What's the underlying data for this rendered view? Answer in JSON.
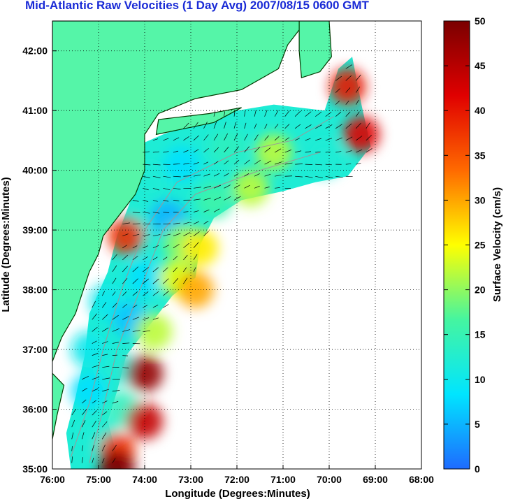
{
  "chart_data": {
    "type": "heatmap",
    "title": "Mid-Atlantic Raw Velocities (1 Day Avg) 2007/08/15 0600 GMT",
    "xlabel": "Longitude (Degrees:Minutes)",
    "ylabel": "Latitude (Degrees:Minutes)",
    "x_ticks": [
      "76:00",
      "75:00",
      "74:00",
      "73:00",
      "72:00",
      "71:00",
      "70:00",
      "69:00",
      "68:00"
    ],
    "y_ticks": [
      "42:00",
      "41:00",
      "40:00",
      "39:00",
      "38:00",
      "37:00",
      "36:00",
      "35:00"
    ],
    "xlim": [
      -76.0,
      -68.0
    ],
    "ylim": [
      35.0,
      42.5
    ],
    "grid": true,
    "colorbar": {
      "label": "Surface Velocity (cm/s)",
      "ticks": [
        "50",
        "45",
        "40",
        "35",
        "30",
        "25",
        "20",
        "15",
        "10",
        "5",
        "0"
      ],
      "range": [
        0,
        50
      ],
      "colors": [
        "#1e6bff",
        "#00e5ff",
        "#45f5a0",
        "#ffff00",
        "#ff6a00",
        "#e00000",
        "#7a0000"
      ]
    },
    "colors": {
      "land": "#55f5a8",
      "coastline": "#003a00",
      "bathymetry": "#9a9a9a",
      "vectors": "#000000"
    },
    "velocity_field": [
      {
        "lon": -69.6,
        "lat": 41.4,
        "speed": 40
      },
      {
        "lon": -69.3,
        "lat": 40.6,
        "speed": 42
      },
      {
        "lon": -70.1,
        "lat": 40.2,
        "speed": 12
      },
      {
        "lon": -71.2,
        "lat": 40.3,
        "speed": 22
      },
      {
        "lon": -72.2,
        "lat": 40.4,
        "speed": 14
      },
      {
        "lon": -73.2,
        "lat": 40.1,
        "speed": 8
      },
      {
        "lon": -73.9,
        "lat": 39.8,
        "speed": 12
      },
      {
        "lon": -71.7,
        "lat": 39.7,
        "speed": 22
      },
      {
        "lon": -72.5,
        "lat": 39.5,
        "speed": 16
      },
      {
        "lon": -73.5,
        "lat": 39.2,
        "speed": 5
      },
      {
        "lon": -74.2,
        "lat": 39.0,
        "speed": 12
      },
      {
        "lon": -74.4,
        "lat": 38.9,
        "speed": 38
      },
      {
        "lon": -73.2,
        "lat": 38.8,
        "speed": 20
      },
      {
        "lon": -72.8,
        "lat": 38.7,
        "speed": 26
      },
      {
        "lon": -74.0,
        "lat": 38.2,
        "speed": 8
      },
      {
        "lon": -73.3,
        "lat": 38.2,
        "speed": 24
      },
      {
        "lon": -72.9,
        "lat": 38.0,
        "speed": 30
      },
      {
        "lon": -74.8,
        "lat": 37.8,
        "speed": 10
      },
      {
        "lon": -74.3,
        "lat": 37.5,
        "speed": 6
      },
      {
        "lon": -73.8,
        "lat": 37.3,
        "speed": 22
      },
      {
        "lon": -75.2,
        "lat": 37.0,
        "speed": 10
      },
      {
        "lon": -74.6,
        "lat": 36.7,
        "speed": 12
      },
      {
        "lon": -74.0,
        "lat": 36.6,
        "speed": 48
      },
      {
        "lon": -75.2,
        "lat": 36.3,
        "speed": 8
      },
      {
        "lon": -74.5,
        "lat": 36.0,
        "speed": 14
      },
      {
        "lon": -74.0,
        "lat": 35.8,
        "speed": 44
      },
      {
        "lon": -75.0,
        "lat": 35.6,
        "speed": 12
      },
      {
        "lon": -74.6,
        "lat": 35.3,
        "speed": 38
      },
      {
        "lon": -74.6,
        "lat": 35.0,
        "speed": 50
      }
    ]
  }
}
